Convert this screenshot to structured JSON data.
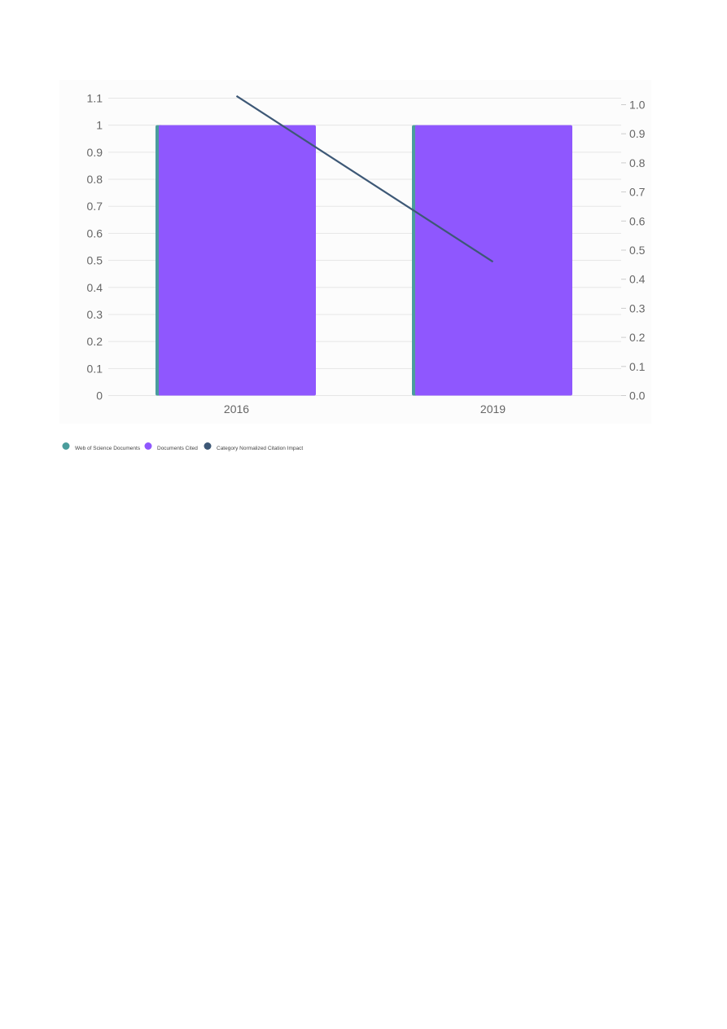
{
  "chart_data": {
    "type": "bar",
    "categories": [
      "2016",
      "2019"
    ],
    "series": [
      {
        "name": "Web of Science Documents",
        "type": "bar",
        "axis": "left",
        "values": [
          1,
          1
        ],
        "color": "#4a9d9c"
      },
      {
        "name": "Documents Cited",
        "type": "bar",
        "axis": "left",
        "values": [
          1,
          1
        ],
        "color": "#8f57fe"
      },
      {
        "name": "Category Normalized Citation Impact",
        "type": "line",
        "axis": "right",
        "values": [
          1.03,
          0.46
        ],
        "color": "#3d5876"
      }
    ],
    "y_left": {
      "min": 0,
      "max": 1.1,
      "ticks": [
        "0",
        "0.1",
        "0.2",
        "0.3",
        "0.4",
        "0.5",
        "0.6",
        "0.7",
        "0.8",
        "0.9",
        "1",
        "1.1"
      ]
    },
    "y_right": {
      "min": 0,
      "max": 1.0,
      "ticks": [
        "0.0",
        "0.1",
        "0.2",
        "0.3",
        "0.4",
        "0.5",
        "0.6",
        "0.7",
        "0.8",
        "0.9",
        "1.0"
      ]
    },
    "grid": true,
    "legend_position": "bottom-left",
    "title": "",
    "xlabel": "",
    "ylabel": ""
  }
}
